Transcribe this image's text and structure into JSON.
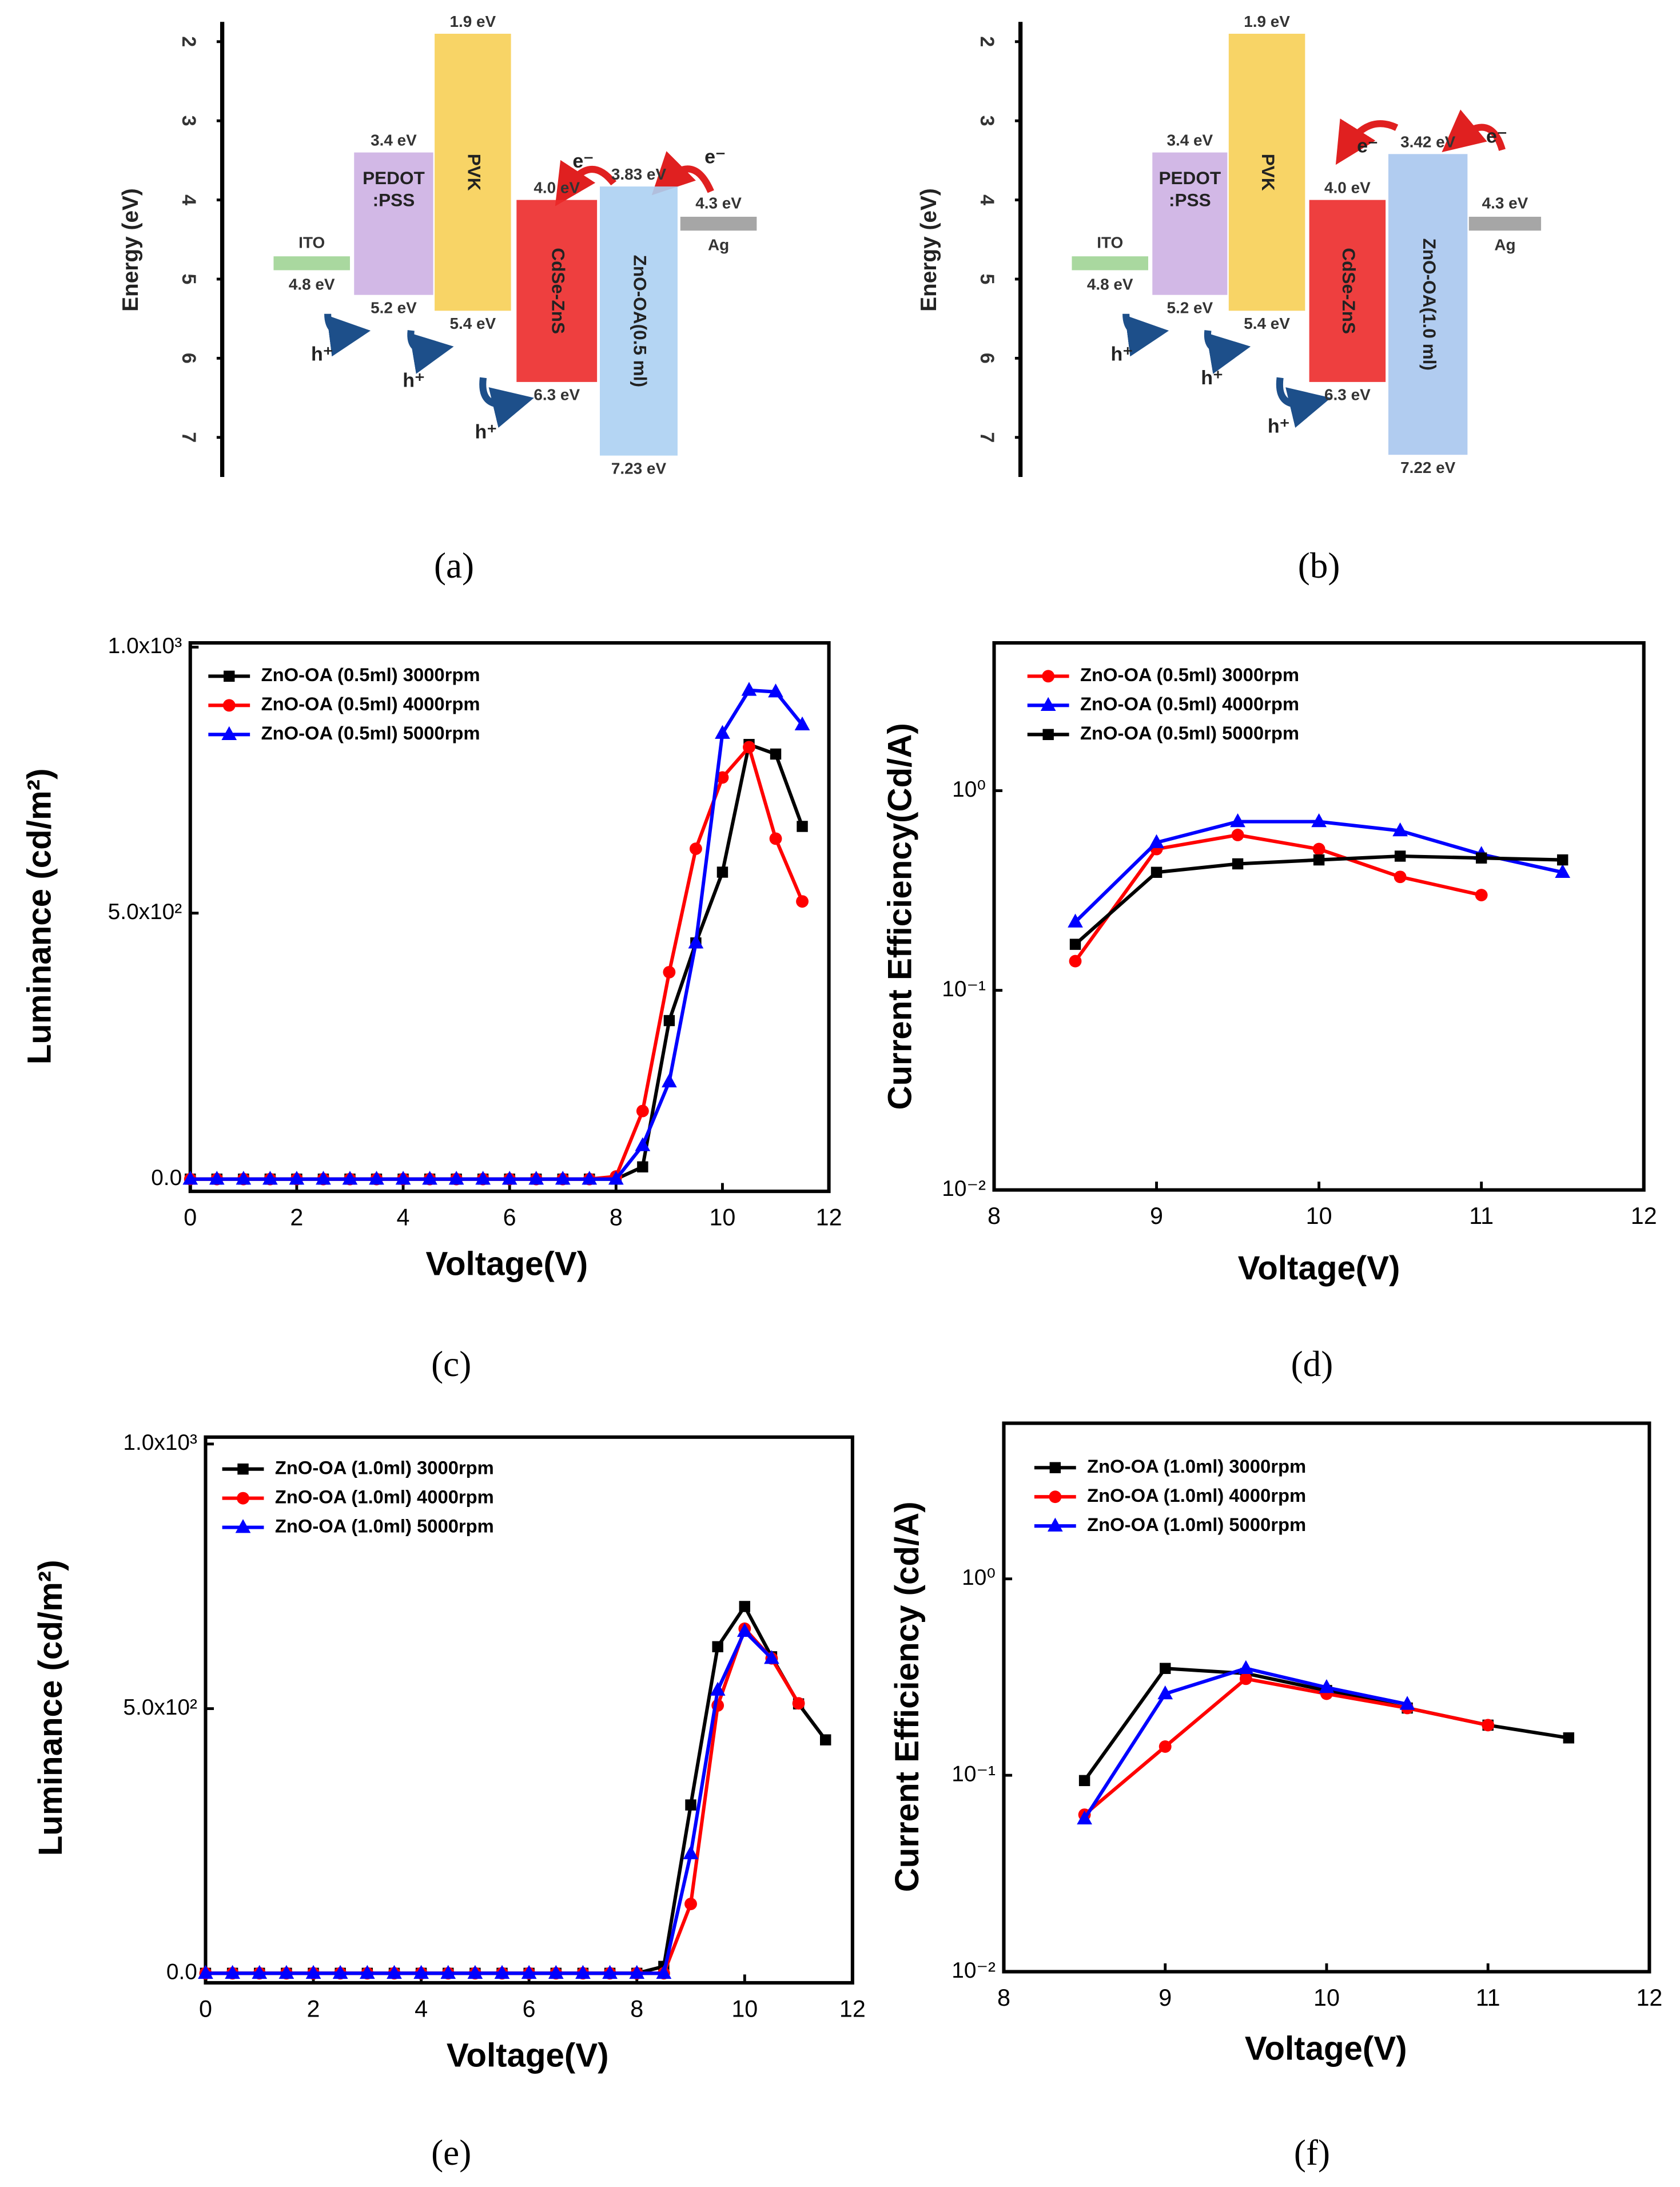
{
  "chart_data": [
    {
      "type": "energy-level",
      "ylabel": "Energy (eV)",
      "ylim": [
        1.75,
        7.5
      ],
      "yticks": [
        2,
        3,
        4,
        5,
        6,
        7
      ],
      "caption": "(a)",
      "layers": [
        {
          "name": "ITO",
          "color": "#a9d89f",
          "values": [
            4.8
          ],
          "value_labels": [
            "4.8 eV"
          ]
        },
        {
          "name": [
            "PEDOT",
            ":PSS"
          ],
          "color": "#cdb0e3",
          "values": [
            3.4,
            5.2
          ],
          "value_labels": [
            "3.4 eV",
            "5.2 eV"
          ]
        },
        {
          "name": "PVK",
          "color": "#f7cf55",
          "values": [
            1.9,
            5.4
          ],
          "value_labels": [
            "1.9 eV",
            "5.4 eV"
          ]
        },
        {
          "name": "CdSe-ZnS",
          "color": "#ec2a2a",
          "values": [
            4.0,
            6.3
          ],
          "value_labels": [
            "4.0 eV",
            "6.3 eV"
          ]
        },
        {
          "name": "ZnO-OA(0.5 ml)",
          "color": "#acd0f2",
          "values": [
            3.83,
            7.23
          ],
          "value_labels": [
            "3.83 eV",
            "7.23 eV"
          ]
        },
        {
          "name": "Ag",
          "color": "#a6a6a6",
          "values": [
            4.3
          ],
          "value_labels": [
            "4.3 eV"
          ]
        }
      ],
      "annotations": [
        "h⁺",
        "h⁺",
        "h⁺",
        "e⁻",
        "e⁻"
      ]
    },
    {
      "type": "energy-level",
      "ylabel": "Energy (eV)",
      "ylim": [
        1.75,
        7.5
      ],
      "yticks": [
        2,
        3,
        4,
        5,
        6,
        7
      ],
      "caption": "(b)",
      "layers": [
        {
          "name": "ITO",
          "color": "#a9d89f",
          "values": [
            4.8
          ],
          "value_labels": [
            "4.8 eV"
          ]
        },
        {
          "name": [
            "PEDOT",
            ":PSS"
          ],
          "color": "#cdb0e3",
          "values": [
            3.4,
            5.2
          ],
          "value_labels": [
            "3.4 eV",
            "5.2 eV"
          ]
        },
        {
          "name": "PVK",
          "color": "#f7cf55",
          "values": [
            1.9,
            5.4
          ],
          "value_labels": [
            "1.9 eV",
            "5.4 eV"
          ]
        },
        {
          "name": "CdSe-ZnS",
          "color": "#ec2a2a",
          "values": [
            4.0,
            6.3
          ],
          "value_labels": [
            "4.0 eV",
            "6.3 eV"
          ]
        },
        {
          "name": "ZnO-OA(1.0 ml)",
          "color": "#a9c6ee",
          "values": [
            3.42,
            7.22
          ],
          "value_labels": [
            "3.42 eV",
            "7.22 eV"
          ]
        },
        {
          "name": "Ag",
          "color": "#a6a6a6",
          "values": [
            4.3
          ],
          "value_labels": [
            "4.3 eV"
          ]
        }
      ],
      "annotations": [
        "h⁺",
        "h⁺",
        "h⁺",
        "e⁻",
        "e⁻"
      ]
    },
    {
      "type": "line",
      "xlabel": "Voltage(V)",
      "ylabel": "Luminance (cd/m²)",
      "caption": "(c)",
      "legend": "upper left",
      "xlim": [
        0,
        12
      ],
      "xticks": [
        0,
        2,
        4,
        6,
        8,
        10,
        12
      ],
      "ylim": [
        -23,
        1008
      ],
      "yticks": [
        {
          "value": 0,
          "label": "0.0"
        },
        {
          "value": 500,
          "label": "5.0x10²"
        },
        {
          "value": 1000,
          "label": "1.0x10³"
        }
      ],
      "x": [
        0,
        0.5,
        1,
        1.5,
        2,
        2.5,
        3,
        3.5,
        4,
        4.5,
        5,
        5.5,
        6,
        6.5,
        7,
        7.5,
        8,
        8.5,
        9,
        9.5,
        10,
        10.5,
        11,
        11.5
      ],
      "series": [
        {
          "name": "ZnO-OA (0.5ml) 3000rpm",
          "color": "#000000",
          "marker": "square",
          "values": [
            0,
            0,
            0,
            0,
            0,
            0,
            0,
            0,
            0,
            0,
            0,
            0,
            0,
            0,
            0,
            0,
            0,
            23,
            298,
            444,
            577,
            817,
            799,
            663
          ]
        },
        {
          "name": "ZnO-OA (0.5ml) 4000rpm",
          "color": "#ff0000",
          "marker": "circle",
          "values": [
            0,
            0,
            0,
            0,
            0,
            0,
            0,
            0,
            0,
            0,
            0,
            0,
            0,
            0,
            0,
            0,
            5,
            128,
            389,
            621,
            755,
            812,
            640,
            522
          ]
        },
        {
          "name": "ZnO-OA (0.5ml) 5000rpm",
          "color": "#0000ff",
          "marker": "triangle",
          "values": [
            0,
            0,
            0,
            0,
            0,
            0,
            0,
            0,
            0,
            0,
            0,
            0,
            0,
            0,
            0,
            0,
            0,
            63,
            183,
            444,
            838,
            919,
            916,
            854
          ]
        }
      ]
    },
    {
      "type": "line",
      "xlabel": "Voltage(V)",
      "ylabel": "Current Efficiency(Cd/A)",
      "caption": "(d)",
      "legend": "upper left",
      "log_y": true,
      "xlim": [
        8,
        12
      ],
      "xticks": [
        8,
        9,
        10,
        11,
        12
      ],
      "ylim": [
        0.01,
        5.5
      ],
      "yticks": [
        {
          "value": 0.01,
          "label": "10⁻²"
        },
        {
          "value": 0.1,
          "label": "10⁻¹"
        },
        {
          "value": 1,
          "label": "10⁰"
        }
      ],
      "x": [
        8.5,
        9,
        9.5,
        10,
        10.5,
        11,
        11.5
      ],
      "series": [
        {
          "name": "ZnO-OA (0.5ml) 3000rpm",
          "color": "#ff0000",
          "marker": "circle",
          "values": [
            0.14,
            0.51,
            0.6,
            0.51,
            0.37,
            0.3,
            null
          ]
        },
        {
          "name": "ZnO-OA (0.5ml) 4000rpm",
          "color": "#0000ff",
          "marker": "triangle",
          "values": [
            0.22,
            0.55,
            0.7,
            0.7,
            0.63,
            0.48,
            0.39
          ]
        },
        {
          "name": "ZnO-OA (0.5ml) 5000rpm",
          "color": "#000000",
          "marker": "square",
          "values": [
            0.17,
            0.39,
            0.43,
            0.45,
            0.47,
            0.46,
            0.45
          ]
        }
      ]
    },
    {
      "type": "line",
      "xlabel": "Voltage(V)",
      "ylabel": "Luminance (cd/m²)",
      "caption": "(e)",
      "legend": "upper left",
      "xlim": [
        0,
        12
      ],
      "xticks": [
        0,
        2,
        4,
        6,
        8,
        10,
        12
      ],
      "ylim": [
        -18,
        1013
      ],
      "yticks": [
        {
          "value": 0,
          "label": "0.0"
        },
        {
          "value": 500,
          "label": "5.0x10²"
        },
        {
          "value": 1000,
          "label": "1.0x10³"
        }
      ],
      "x": [
        0,
        0.5,
        1,
        1.5,
        2,
        2.5,
        3,
        3.5,
        4,
        4.5,
        5,
        5.5,
        6,
        6.5,
        7,
        7.5,
        8,
        8.5,
        9,
        9.5,
        10,
        10.5,
        11,
        11.5
      ],
      "series": [
        {
          "name": "ZnO-OA (1.0ml) 3000rpm",
          "color": "#000000",
          "marker": "square",
          "values": [
            0,
            0,
            0,
            0,
            0,
            0,
            0,
            0,
            0,
            0,
            0,
            0,
            0,
            0,
            0,
            0,
            0,
            13,
            318,
            617,
            693,
            598,
            509,
            441
          ]
        },
        {
          "name": "ZnO-OA (1.0ml) 4000rpm",
          "color": "#ff0000",
          "marker": "circle",
          "values": [
            0,
            0,
            0,
            0,
            0,
            0,
            0,
            0,
            0,
            0,
            0,
            0,
            0,
            0,
            0,
            0,
            0,
            0,
            131,
            506,
            651,
            595,
            510,
            null
          ]
        },
        {
          "name": "ZnO-OA (1.0ml) 5000rpm",
          "color": "#0000ff",
          "marker": "triangle",
          "values": [
            0,
            0,
            0,
            0,
            0,
            0,
            0,
            0,
            0,
            0,
            0,
            0,
            0,
            0,
            0,
            0,
            0,
            0,
            226,
            535,
            646,
            595,
            null,
            null
          ]
        }
      ]
    },
    {
      "type": "line",
      "xlabel": "Voltage(V)",
      "ylabel": "Current Efficiency (cd/A)",
      "caption": "(f)",
      "legend": "upper left",
      "log_y": true,
      "xlim": [
        8,
        12
      ],
      "xticks": [
        8,
        9,
        10,
        11,
        12
      ],
      "ylim": [
        0.01,
        6.2
      ],
      "yticks": [
        {
          "value": 0.01,
          "label": "10⁻²"
        },
        {
          "value": 0.1,
          "label": "10⁻¹"
        },
        {
          "value": 1,
          "label": "10⁰"
        }
      ],
      "x": [
        8.5,
        9,
        9.5,
        10,
        10.5,
        11,
        11.5
      ],
      "series": [
        {
          "name": "ZnO-OA (1.0ml) 3000rpm",
          "color": "#000000",
          "marker": "square",
          "values": [
            0.094,
            0.35,
            0.33,
            0.27,
            0.22,
            0.18,
            0.155
          ]
        },
        {
          "name": "ZnO-OA (1.0ml) 4000rpm",
          "color": "#ff0000",
          "marker": "circle",
          "values": [
            0.063,
            0.14,
            0.31,
            0.26,
            0.22,
            0.18,
            null
          ]
        },
        {
          "name": "ZnO-OA (1.0ml) 5000rpm",
          "color": "#0000ff",
          "marker": "triangle",
          "values": [
            0.06,
            0.26,
            0.35,
            0.28,
            0.23,
            null,
            null
          ]
        }
      ]
    }
  ]
}
